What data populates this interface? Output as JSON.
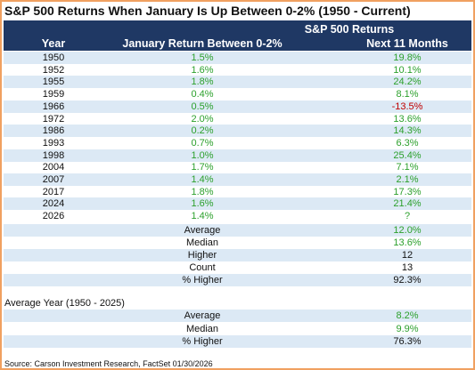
{
  "title": "S&P 500 Returns When January Is Up Between 0-2% (1950 - Current)",
  "header": {
    "group": "S&P 500 Returns",
    "year": "Year",
    "january": "January Return Between 0-2%",
    "next": "Next 11 Months"
  },
  "rows": [
    [
      "1950",
      "1.5%",
      "19.8%"
    ],
    [
      "1952",
      "1.6%",
      "10.1%"
    ],
    [
      "1955",
      "1.8%",
      "24.2%"
    ],
    [
      "1959",
      "0.4%",
      "8.1%"
    ],
    [
      "1966",
      "0.5%",
      "-13.5%"
    ],
    [
      "1972",
      "2.0%",
      "13.6%"
    ],
    [
      "1986",
      "0.2%",
      "14.3%"
    ],
    [
      "1993",
      "0.7%",
      "6.3%"
    ],
    [
      "1998",
      "1.0%",
      "25.4%"
    ],
    [
      "2004",
      "1.7%",
      "7.1%"
    ],
    [
      "2007",
      "1.4%",
      "2.1%"
    ],
    [
      "2017",
      "1.8%",
      "17.3%"
    ],
    [
      "2024",
      "1.6%",
      "21.4%"
    ],
    [
      "2026",
      "1.4%",
      "?"
    ]
  ],
  "summary": [
    [
      "Average",
      "12.0%"
    ],
    [
      "Median",
      "13.6%"
    ],
    [
      "Higher",
      "12"
    ],
    [
      "Count",
      "13"
    ],
    [
      "% Higher",
      "92.3%"
    ]
  ],
  "average_year": {
    "title": "Average Year (1950 - 2025)",
    "rows": [
      [
        "Average",
        "8.2%"
      ],
      [
        "Median",
        "9.9%"
      ],
      [
        "% Higher",
        "76.3%"
      ]
    ]
  },
  "source": "Source: Carson Investment Research, FactSet 01/30/2026"
}
